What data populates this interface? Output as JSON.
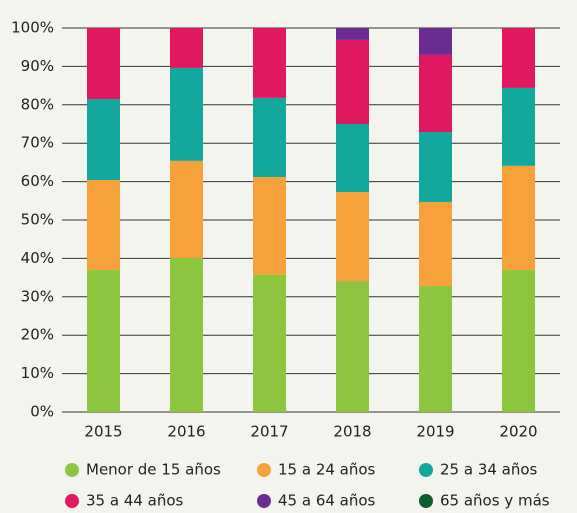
{
  "chart_data": {
    "type": "stacked_bar",
    "categories": [
      "2015",
      "2016",
      "2017",
      "2018",
      "2019",
      "2020"
    ],
    "series": [
      {
        "name": "Menor de 15 años",
        "color": "#8cc63f",
        "values": [
          37.0,
          40.1,
          35.7,
          34.1,
          32.8,
          37.0
        ]
      },
      {
        "name": "15 a 24 años",
        "color": "#f7a13a",
        "values": [
          23.4,
          25.3,
          25.5,
          23.2,
          21.9,
          27.1
        ]
      },
      {
        "name": "25 a 34 años",
        "color": "#13a89e",
        "values": [
          21.1,
          24.2,
          20.6,
          17.7,
          18.2,
          20.3
        ]
      },
      {
        "name": "35 a 44 años",
        "color": "#e0185f",
        "values": [
          18.5,
          10.4,
          18.2,
          21.9,
          20.1,
          15.6
        ]
      },
      {
        "name": "45 a 64 años",
        "color": "#6b2c91",
        "values": [
          0,
          0,
          0,
          3.1,
          7.0,
          0
        ]
      },
      {
        "name": "65 años y más",
        "color": "#0d5e2f",
        "values": [
          0,
          0,
          0,
          0,
          0,
          0
        ]
      }
    ],
    "ylim": [
      0,
      100
    ],
    "yticks": [
      {
        "value": 0,
        "label": "0%"
      },
      {
        "value": 10,
        "label": "10%"
      },
      {
        "value": 20,
        "label": "20%"
      },
      {
        "value": 30,
        "label": "30%"
      },
      {
        "value": 40,
        "label": "40%"
      },
      {
        "value": 50,
        "label": "50%"
      },
      {
        "value": 60,
        "label": "60%"
      },
      {
        "value": 70,
        "label": "70%"
      },
      {
        "value": 80,
        "label": "80%"
      },
      {
        "value": 90,
        "label": "90%"
      },
      {
        "value": 100,
        "label": "100%"
      }
    ],
    "grid": true,
    "legend": "bottom"
  }
}
